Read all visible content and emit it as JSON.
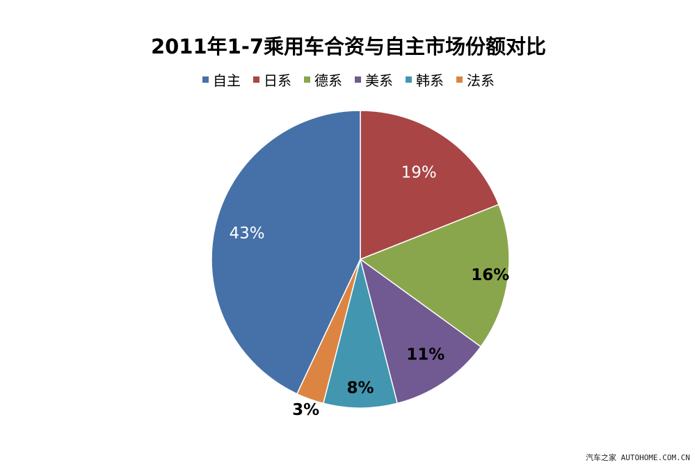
{
  "chart_data": {
    "type": "pie",
    "title": "2011年1-7乘用车合资与自主市场份额对比",
    "legend_position": "top",
    "categories": [
      "自主",
      "日系",
      "德系",
      "美系",
      "韩系",
      "法系"
    ],
    "values": [
      43,
      19,
      16,
      11,
      8,
      3
    ],
    "value_labels": [
      "43%",
      "19%",
      "16%",
      "11%",
      "8%",
      "3%"
    ],
    "colors": [
      "#4571A8",
      "#A94545",
      "#8AA64C",
      "#715992",
      "#4296AF",
      "#DC8543"
    ],
    "start_category": "日系",
    "direction": "clockwise"
  },
  "watermark": "汽车之家 AUTOHOME.COM.CN"
}
